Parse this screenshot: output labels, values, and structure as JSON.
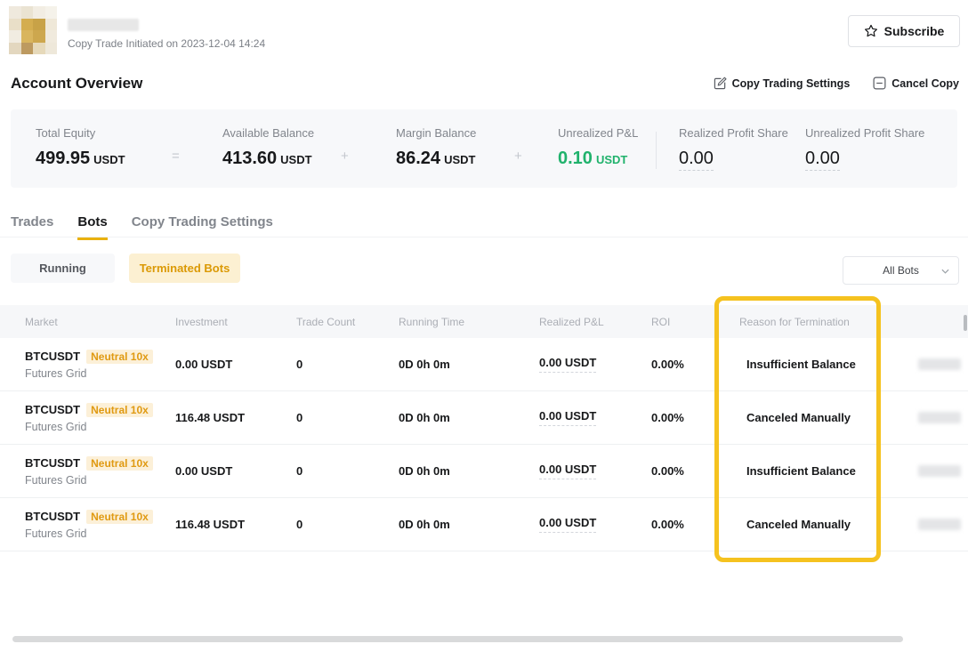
{
  "header": {
    "copy_trade_initiated": "Copy Trade Initiated on 2023-12-04 14:24",
    "subscribe_label": "Subscribe",
    "avatar_pixels": [
      "#efe9dd",
      "#eae3d2",
      "#f2ede3",
      "#f5f2ea",
      "#e9dfc8",
      "#d4ad4f",
      "#c8a247",
      "#efe8d8",
      "#f1ece1",
      "#d9b55e",
      "#cda74e",
      "#f0eadd",
      "#e3d7bf",
      "#bd9a60",
      "#e6d9ba",
      "#eee8da"
    ]
  },
  "overview": {
    "title": "Account Overview",
    "copy_trading_settings_label": "Copy Trading Settings",
    "cancel_copy_label": "Cancel Copy",
    "operators": [
      "=",
      "+",
      "+"
    ],
    "stats": [
      {
        "label": "Total Equity",
        "value": "499.95",
        "unit": "USDT"
      },
      {
        "label": "Available Balance",
        "value": "413.60",
        "unit": "USDT"
      },
      {
        "label": "Margin Balance",
        "value": "86.24",
        "unit": "USDT"
      },
      {
        "label": "Unrealized P&L",
        "value": "0.10",
        "unit": "USDT",
        "color": "#20b26c"
      },
      {
        "label": "Realized Profit Share",
        "value": "0.00",
        "unit": ""
      },
      {
        "label": "Unrealized Profit Share",
        "value": "0.00",
        "unit": ""
      }
    ]
  },
  "tabs": [
    {
      "label": "Trades",
      "active": false
    },
    {
      "label": "Bots",
      "active": true
    },
    {
      "label": "Copy Trading Settings",
      "active": false
    }
  ],
  "filters": {
    "running_label": "Running",
    "terminated_label": "Terminated Bots",
    "all_bots_label": "All Bots"
  },
  "table": {
    "columns": [
      "Market",
      "Investment",
      "Trade Count",
      "Running Time",
      "Realized P&L",
      "ROI",
      "Reason for Termination"
    ],
    "rows": [
      {
        "market": "BTCUSDT",
        "badge": "Neutral 10x",
        "type": "Futures Grid",
        "investment": "0.00 USDT",
        "trade_count": "0",
        "running_time": "0D 0h 0m",
        "realized_pnl": "0.00 USDT",
        "roi": "0.00%",
        "reason": "Insufficient Balance"
      },
      {
        "market": "BTCUSDT",
        "badge": "Neutral 10x",
        "type": "Futures Grid",
        "investment": "116.48 USDT",
        "trade_count": "0",
        "running_time": "0D 0h 0m",
        "realized_pnl": "0.00 USDT",
        "roi": "0.00%",
        "reason": "Canceled Manually"
      },
      {
        "market": "BTCUSDT",
        "badge": "Neutral 10x",
        "type": "Futures Grid",
        "investment": "0.00 USDT",
        "trade_count": "0",
        "running_time": "0D 0h 0m",
        "realized_pnl": "0.00 USDT",
        "roi": "0.00%",
        "reason": "Insufficient Balance"
      },
      {
        "market": "BTCUSDT",
        "badge": "Neutral 10x",
        "type": "Futures Grid",
        "investment": "116.48 USDT",
        "trade_count": "0",
        "running_time": "0D 0h 0m",
        "realized_pnl": "0.00 USDT",
        "roi": "0.00%",
        "reason": "Canceled Manually"
      }
    ]
  },
  "colors": {
    "highlight_box": "#f5c21f",
    "tab_underline": "#e9b10e",
    "positive_green": "#20b26c",
    "badge_bg": "#fcf0d8",
    "badge_text": "#e09a12",
    "terminated_chip_bg": "#fcf0d2",
    "terminated_chip_text": "#db9904"
  }
}
